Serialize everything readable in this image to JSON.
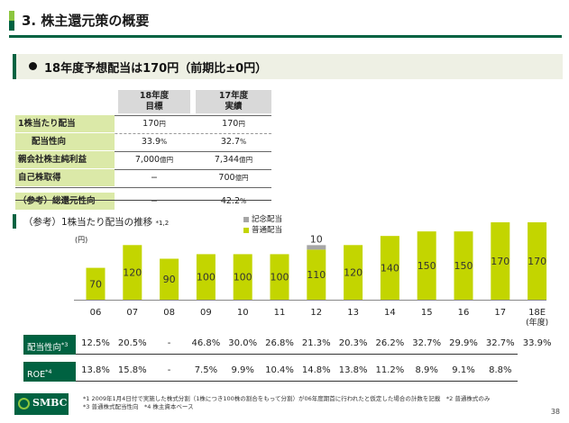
{
  "header": {
    "title": "3. 株主還元策の概要"
  },
  "banner": {
    "text": "18年度予想配当は170円（前期比±0円）"
  },
  "table": {
    "col1_head": [
      "18年度",
      "目標"
    ],
    "col2_head": [
      "17年度",
      "実績"
    ],
    "rows": [
      {
        "label": "1株当たり配当",
        "v1": "170",
        "u1": "円",
        "v2": "170",
        "u2": "円"
      },
      {
        "label": "配当性向",
        "v1": "33.9",
        "u1": "%",
        "v2": "32.7",
        "u2": "%"
      },
      {
        "label": "親会社株主純利益",
        "v1": "7,000",
        "u1": "億円",
        "v2": "7,344",
        "u2": "億円"
      },
      {
        "label": "自己株取得",
        "v1": "−",
        "u1": "",
        "v2": "700",
        "u2": "億円"
      },
      {
        "label": "（参考）総還元性向",
        "v1": "−",
        "u1": "",
        "v2": "42.2",
        "u2": "%"
      }
    ]
  },
  "reference": {
    "title": "（参考）1株当たり配当の推移",
    "note_mark": "*1,2"
  },
  "legend": {
    "special": "記念配当",
    "normal": "普通配当"
  },
  "unit": "(円)",
  "chart_data": {
    "type": "bar",
    "categories": [
      "06",
      "07",
      "08",
      "09",
      "10",
      "11",
      "12",
      "13",
      "14",
      "15",
      "16",
      "17",
      "18E"
    ],
    "x_sublabel": "(年度)",
    "series": [
      {
        "name": "普通配当",
        "values": [
          70,
          120,
          90,
          100,
          100,
          100,
          110,
          120,
          140,
          150,
          150,
          170,
          170
        ]
      },
      {
        "name": "記念配当",
        "values": [
          0,
          0,
          0,
          0,
          0,
          0,
          10,
          0,
          0,
          0,
          0,
          0,
          0
        ]
      }
    ],
    "colors": {
      "normal": "#c3d500",
      "special": "#a6a6a6"
    },
    "ylim": [
      0,
      185
    ]
  },
  "payout": {
    "label": "配当性向",
    "sup": "*3",
    "values": [
      "12.5%",
      "20.5%",
      "-",
      "46.8%",
      "30.0%",
      "26.8%",
      "21.3%",
      "20.3%",
      "26.2%",
      "32.7%",
      "29.9%",
      "32.7%",
      "33.9%"
    ]
  },
  "roe": {
    "label": "ROE",
    "sup": "*4",
    "values": [
      "13.8%",
      "15.8%",
      "-",
      "7.5%",
      "9.9%",
      "10.4%",
      "14.8%",
      "13.8%",
      "11.2%",
      "8.9%",
      "9.1%",
      "8.8%",
      ""
    ]
  },
  "logo": {
    "text": "SMBC"
  },
  "footnotes": [
    "*1 2009年1月4日付で実施した株式分割（1株につき100株の割合をもって分割）が06年度期首に行われたと仮定した場合の計数を記載　*2 普通株式のみ",
    "*3 普通株式配当性向　*4 株主資本ベース"
  ],
  "page_number": "38"
}
